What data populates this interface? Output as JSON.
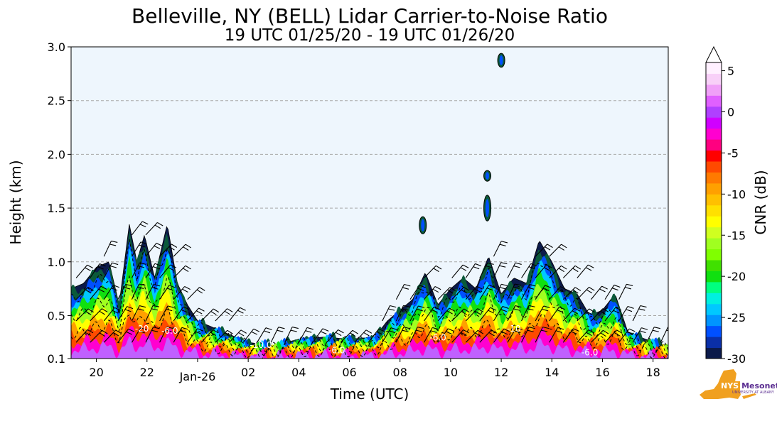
{
  "chart_data": {
    "type": "heatmap",
    "title": "Belleville, NY (BELL) Lidar Carrier-to-Noise Ratio",
    "subtitle": "19 UTC 01/25/20 - 19 UTC 01/26/20",
    "xlabel": "Time (UTC)",
    "ylabel": "Height (km)",
    "colorbar_label": "CNR (dB)",
    "x_ticks": [
      "20",
      "22",
      "Jan-26",
      "02",
      "04",
      "06",
      "08",
      "10",
      "12",
      "14",
      "16",
      "18"
    ],
    "x_tick_hours": [
      20,
      22,
      24,
      26,
      28,
      30,
      32,
      34,
      36,
      38,
      40,
      42
    ],
    "xlim_hours": [
      19,
      42.6
    ],
    "y_ticks": [
      "0.1",
      "0.5",
      "1.0",
      "1.5",
      "2.0",
      "2.5",
      "3.0"
    ],
    "y_tick_values": [
      0.1,
      0.5,
      1.0,
      1.5,
      2.0,
      2.5,
      3.0
    ],
    "ylim": [
      0.1,
      3.0
    ],
    "grid": "horizontal dashed",
    "colorbar_ticks": [
      "5",
      "0",
      "-5",
      "-10",
      "-15",
      "-20",
      "-25",
      "-30"
    ],
    "colorbar_tick_values": [
      5,
      0,
      -5,
      -10,
      -15,
      -20,
      -25,
      -30
    ],
    "colorbar_range": [
      -30,
      6
    ],
    "colorbar_colors": [
      "#0b1a4a",
      "#0a2fa8",
      "#0050ff",
      "#0094ff",
      "#00c8ff",
      "#00f0e0",
      "#00ff80",
      "#10e010",
      "#40e000",
      "#80ff00",
      "#a0ff20",
      "#d0ff20",
      "#ffff00",
      "#ffe000",
      "#ffc000",
      "#ffa000",
      "#ff7a00",
      "#ff4a00",
      "#ff0000",
      "#ff0080",
      "#ff00d0",
      "#d000ff",
      "#b040ff",
      "#e060ff",
      "#f0a0f8",
      "#f8d0f8",
      "#fff0ff"
    ],
    "background_color": "#eef6fd",
    "contour_labels": [
      "-20",
      "-6.0",
      "-10.0",
      "-6.0",
      "-6.0",
      "-10",
      "-6.0"
    ],
    "profile_max_height_km": [
      [
        19.0,
        0.75
      ],
      [
        19.5,
        0.8
      ],
      [
        20.0,
        0.95
      ],
      [
        20.5,
        1.0
      ],
      [
        20.9,
        0.6
      ],
      [
        21.3,
        1.35
      ],
      [
        21.6,
        1.0
      ],
      [
        21.9,
        1.25
      ],
      [
        22.3,
        0.85
      ],
      [
        22.8,
        1.35
      ],
      [
        23.2,
        0.8
      ],
      [
        23.6,
        0.6
      ],
      [
        24.0,
        0.45
      ],
      [
        24.5,
        0.4
      ],
      [
        25.0,
        0.35
      ],
      [
        25.5,
        0.3
      ],
      [
        26.0,
        0.25
      ],
      [
        27.0,
        0.22
      ],
      [
        28.0,
        0.28
      ],
      [
        29.0,
        0.3
      ],
      [
        30.0,
        0.28
      ],
      [
        31.0,
        0.3
      ],
      [
        31.5,
        0.45
      ],
      [
        32.0,
        0.55
      ],
      [
        32.5,
        0.65
      ],
      [
        33.0,
        0.9
      ],
      [
        33.5,
        0.6
      ],
      [
        34.0,
        0.75
      ],
      [
        34.5,
        0.85
      ],
      [
        35.0,
        0.75
      ],
      [
        35.5,
        1.05
      ],
      [
        36.0,
        0.7
      ],
      [
        36.5,
        0.85
      ],
      [
        37.0,
        0.8
      ],
      [
        37.5,
        1.2
      ],
      [
        38.0,
        1.0
      ],
      [
        38.5,
        0.75
      ],
      [
        39.0,
        0.7
      ],
      [
        39.5,
        0.5
      ],
      [
        40.0,
        0.55
      ],
      [
        40.5,
        0.7
      ],
      [
        41.0,
        0.35
      ],
      [
        41.5,
        0.3
      ],
      [
        42.0,
        0.25
      ],
      [
        42.6,
        0.22
      ]
    ],
    "isolated_returns": [
      {
        "hour": 35.45,
        "bottom_km": 1.38,
        "top_km": 1.62
      },
      {
        "hour": 35.45,
        "bottom_km": 1.75,
        "top_km": 1.85
      },
      {
        "hour": 36.0,
        "bottom_km": 2.81,
        "top_km": 2.94
      },
      {
        "hour": 32.9,
        "bottom_km": 1.26,
        "top_km": 1.42
      }
    ]
  },
  "logo": {
    "text": "Mesonet",
    "badge": "NYS",
    "subtext": "UNIVERSITY AT ALBANY"
  }
}
